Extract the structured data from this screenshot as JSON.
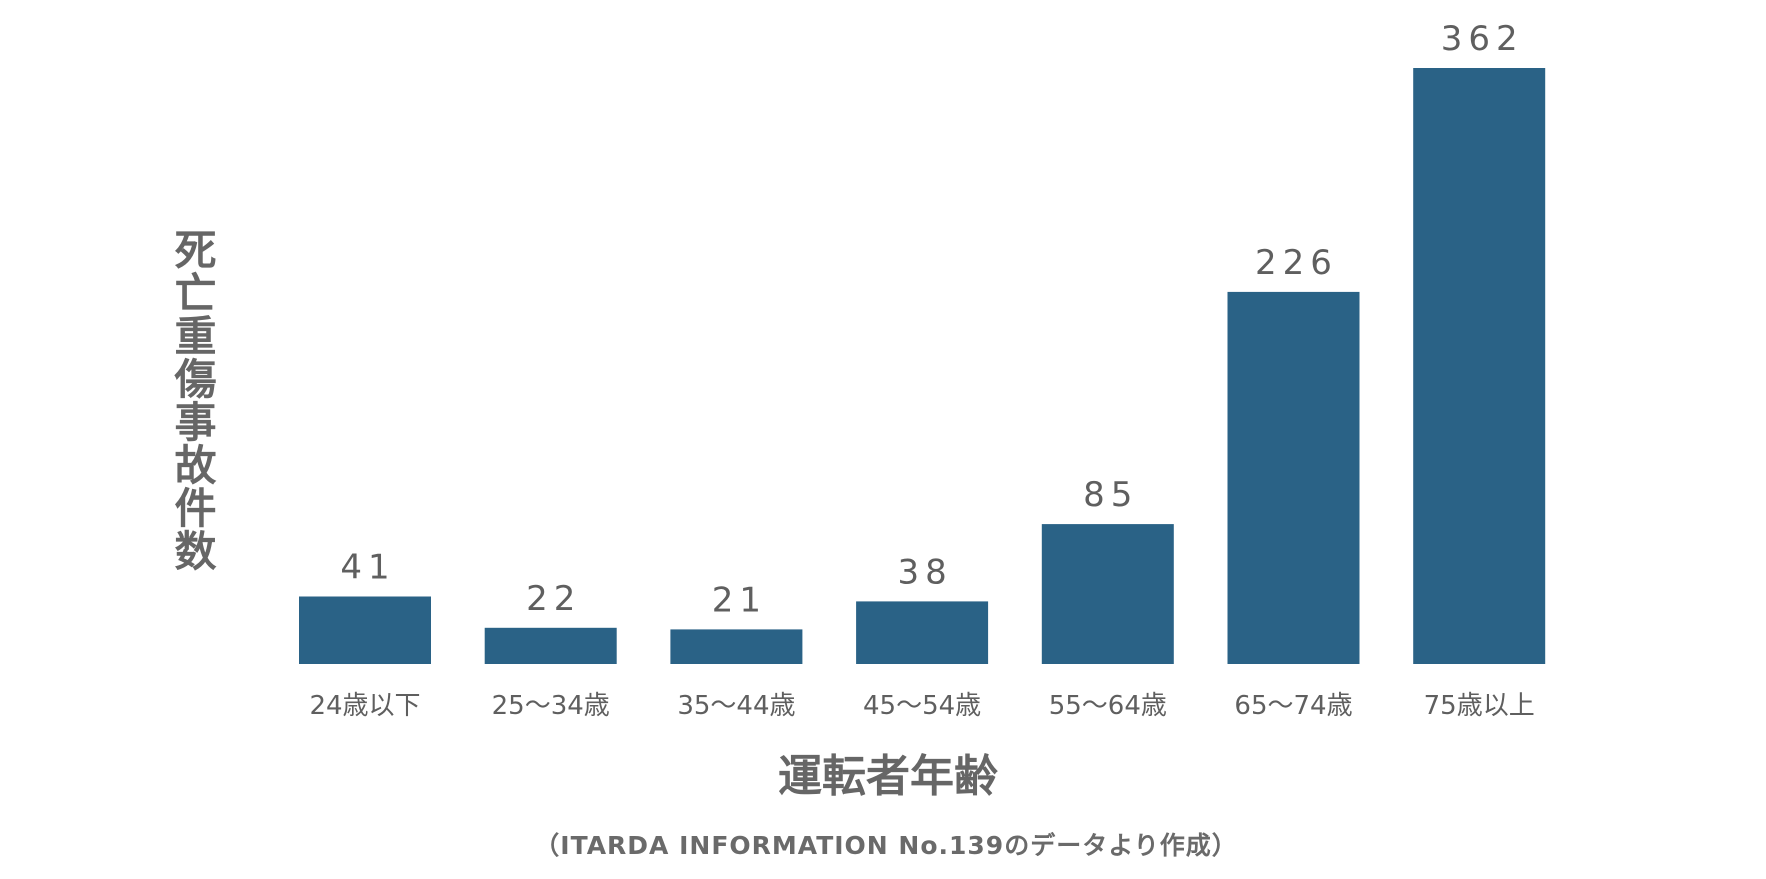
{
  "chart_data": {
    "type": "bar",
    "categories": [
      "24歳以下",
      "25〜34歳",
      "35〜44歳",
      "45〜54歳",
      "55〜64歳",
      "65〜74歳",
      "75歳以上"
    ],
    "values": [
      41,
      22,
      21,
      38,
      85,
      226,
      362
    ],
    "xlabel": "運転者年齢",
    "ylabel": "死亡重傷事故件数",
    "ylim": [
      0,
      362
    ],
    "grid": false,
    "data_labels": true,
    "colors": {
      "bar": "#2a6286",
      "text": "#5f5f5f"
    }
  },
  "source_note": "（ITARDA INFORMATION No.139のデータより作成）"
}
